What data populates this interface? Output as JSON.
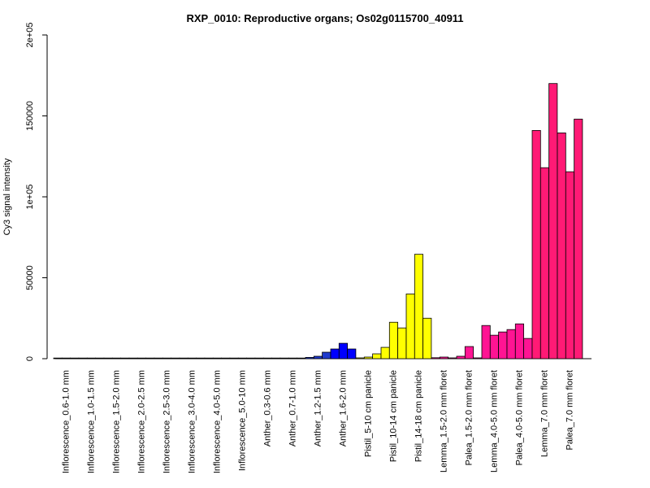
{
  "chart_data": {
    "type": "bar",
    "title": "RXP_0010: Reproductive organs; Os02g0115700_40911",
    "xlabel": "",
    "ylabel": "Cy3 signal intensity",
    "ylim": [
      0,
      200000
    ],
    "yticks": [
      {
        "value": 0,
        "label": "0"
      },
      {
        "value": 50000,
        "label": "50000"
      },
      {
        "value": 100000,
        "label": "1e+05"
      },
      {
        "value": 150000,
        "label": "150000"
      },
      {
        "value": 200000,
        "label": "2e+05"
      }
    ],
    "groups": [
      {
        "label": "Inflorescence_0.6-1.0 mm",
        "color": "#1a1a1a",
        "values": [
          200,
          150,
          100
        ]
      },
      {
        "label": "Inflorescence_1.0-1.5 mm",
        "color": "#1a1a1a",
        "values": [
          150,
          200,
          100
        ]
      },
      {
        "label": "Inflorescence_1.5-2.0 mm",
        "color": "#1a1a1a",
        "values": [
          150,
          100,
          150
        ]
      },
      {
        "label": "Inflorescence_2.0-2.5 mm",
        "color": "#1a1a1a",
        "values": [
          100,
          150,
          100
        ]
      },
      {
        "label": "Inflorescence_2.5-3.0 mm",
        "color": "#1a1a1a",
        "values": [
          100,
          100,
          150
        ]
      },
      {
        "label": "Inflorescence_3.0-4.0 mm",
        "color": "#1a1a1a",
        "values": [
          150,
          100,
          100
        ]
      },
      {
        "label": "Inflorescence_4.0-5.0 mm",
        "color": "#1a1a1a",
        "values": [
          100,
          150,
          100
        ]
      },
      {
        "label": "Inflorescence_5.0-10 mm",
        "color": "#1a1a1a",
        "values": [
          150,
          100,
          150
        ]
      },
      {
        "label": "Anther_0.3-0.6 mm",
        "color": "#1a1a1a",
        "values": [
          200,
          400,
          250
        ]
      },
      {
        "label": "Anther_0.7-1.0 mm",
        "color": "#1a1a1a",
        "values": [
          150,
          250,
          300
        ]
      },
      {
        "label": "Anther_1.2-1.5 mm",
        "color": "#1e3acc",
        "values": [
          800,
          1500,
          4000
        ]
      },
      {
        "label": "Anther_1.6-2.0 mm",
        "color": "#0000ff",
        "values": [
          6000,
          9500,
          6000
        ]
      },
      {
        "label": "Pistil_5-10 cm panicle",
        "color": "#ffff00",
        "values": [
          500,
          1000,
          3000
        ]
      },
      {
        "label": "Pistil_10-14 cm panicle",
        "color": "#ffff00",
        "values": [
          7000,
          22500,
          19000
        ]
      },
      {
        "label": "Pistil_14-18 cm panicle",
        "color": "#ffff00",
        "values": [
          40000,
          64500,
          25000
        ]
      },
      {
        "label": "Lemma_1.5-2.0 mm floret",
        "color": "#ff1493",
        "values": [
          600,
          1000,
          500
        ]
      },
      {
        "label": "Palea_1.5-2.0 mm floret",
        "color": "#ff1493",
        "values": [
          1500,
          7500,
          500
        ]
      },
      {
        "label": "Lemma_4.0-5.0 mm floret",
        "color": "#ff1493",
        "values": [
          20500,
          14500,
          16500
        ]
      },
      {
        "label": "Palea_4.0-5.0 mm floret",
        "color": "#ff1493",
        "values": [
          18000,
          21500,
          12500
        ]
      },
      {
        "label": "Lemma_7.0 mm floret",
        "color": "#ff1a75",
        "values": [
          141000,
          118000,
          170000
        ]
      },
      {
        "label": "Palea_7.0 mm floret",
        "color": "#ff1a75",
        "values": [
          139500,
          115500,
          148000
        ]
      }
    ],
    "legend": "none",
    "grid": false
  }
}
